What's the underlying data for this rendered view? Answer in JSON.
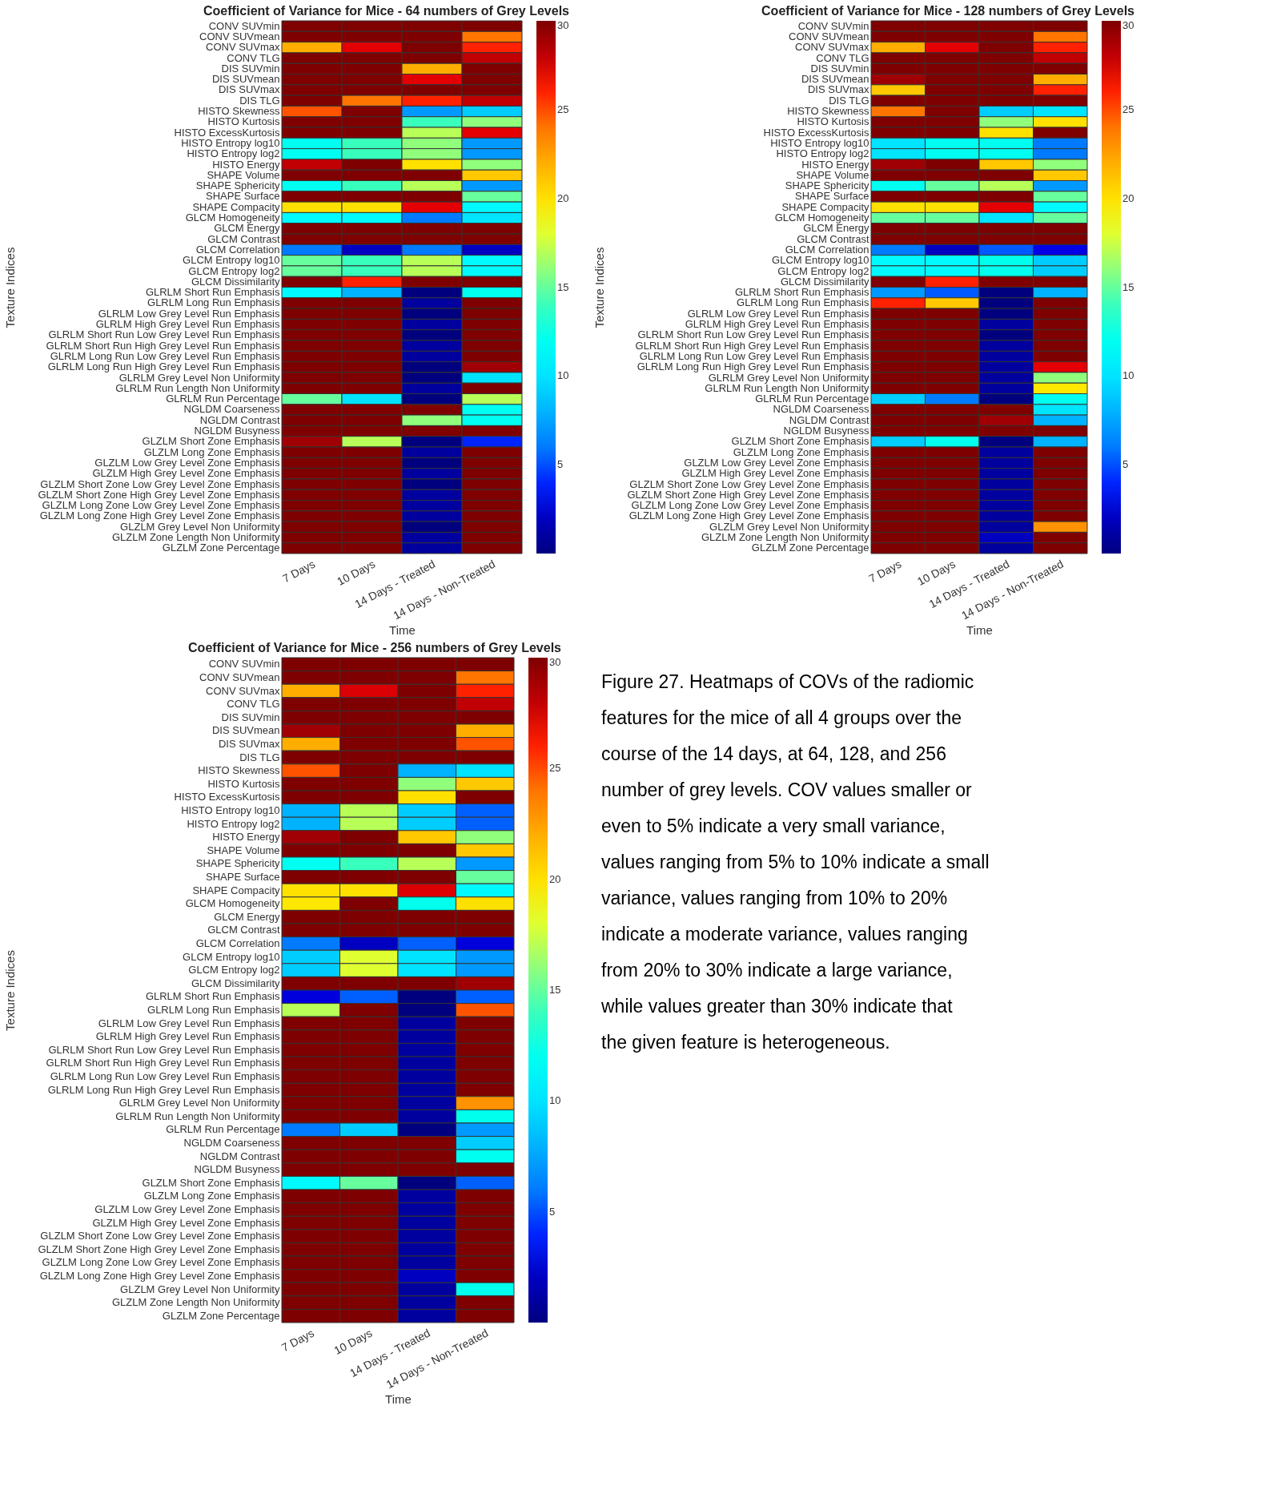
{
  "chart_data": [
    {
      "type": "heatmap",
      "title": "Coefficient of Variance for Mice - 64 numbers of Grey Levels",
      "xlabel": "Time",
      "ylabel": "Texture Indices",
      "categories": [
        "7 Days",
        "10 Days",
        "14 Days - Treated",
        "14 Days - Non-Treated"
      ],
      "y_categories": [
        "CONV SUVmin",
        "CONV SUVmean",
        "CONV SUVmax",
        "CONV TLG",
        "DIS SUVmin",
        "DIS SUVmean",
        "DIS SUVmax",
        "DIS TLG",
        "HISTO Skewness",
        "HISTO Kurtosis",
        "HISTO ExcessKurtosis",
        "HISTO Entropy log10",
        "HISTO Entropy log2",
        "HISTO Energy",
        "SHAPE Volume",
        "SHAPE Sphericity",
        "SHAPE Surface",
        "SHAPE Compacity",
        "GLCM Homogeneity",
        "GLCM Energy",
        "GLCM Contrast",
        "GLCM Correlation",
        "GLCM Entropy log10",
        "GLCM Entropy log2",
        "GLCM Dissimilarity",
        "GLRLM Short Run Emphasis",
        "GLRLM Long Run Emphasis",
        "GLRLM Low Grey Level Run Emphasis",
        "GLRLM High Grey Level Run Emphasis",
        "GLRLM Short Run Low Grey Level Run Emphasis",
        "GLRLM Short Run High Grey Level Run Emphasis",
        "GLRLM Long Run Low Grey Level Run Emphasis",
        "GLRLM Long Run High Grey Level Run Emphasis",
        "GLRLM Grey Level Non Uniformity",
        "GLRLM Run Length Non Uniformity",
        "GLRLM Run Percentage",
        "NGLDM Coarseness",
        "NGLDM Contrast",
        "NGLDM Busyness",
        "GLZLM Short Zone Emphasis",
        "GLZLM Long Zone Emphasis",
        "GLZLM Low Grey Level Zone Emphasis",
        "GLZLM High Grey Level Zone Emphasis",
        "GLZLM Short Zone Low Grey Level Zone Emphasis",
        "GLZLM Short Zone High Grey Level Zone Emphasis",
        "GLZLM Long Zone Low Grey Level Zone Emphasis",
        "GLZLM Long Zone High Grey Level Zone Emphasis",
        "GLZLM Grey Level Non Uniformity",
        "GLZLM Zone Length Non Uniformity",
        "GLZLM Zone Percentage"
      ],
      "cells": [
        [
          30,
          30,
          30,
          30
        ],
        [
          30,
          30,
          30,
          24
        ],
        [
          22,
          27,
          30,
          26
        ],
        [
          30,
          30,
          30,
          28
        ],
        [
          30,
          30,
          22,
          30
        ],
        [
          30,
          30,
          27,
          30
        ],
        [
          30,
          30,
          30,
          30
        ],
        [
          30,
          24,
          26,
          28
        ],
        [
          25,
          30,
          7,
          9
        ],
        [
          30,
          30,
          14,
          16
        ],
        [
          30,
          30,
          17,
          27
        ],
        [
          12,
          14,
          16,
          7
        ],
        [
          12,
          14,
          16,
          7
        ],
        [
          28,
          30,
          20,
          16
        ],
        [
          30,
          30,
          30,
          21
        ],
        [
          12,
          14,
          17,
          7
        ],
        [
          30,
          30,
          30,
          15
        ],
        [
          20,
          20,
          27,
          11
        ],
        [
          11,
          11,
          6,
          10
        ],
        [
          30,
          30,
          30,
          30
        ],
        [
          30,
          30,
          30,
          30
        ],
        [
          6,
          2,
          6,
          2
        ],
        [
          15,
          14,
          17,
          11
        ],
        [
          15,
          14,
          17,
          11
        ],
        [
          30,
          26,
          30,
          30
        ],
        [
          11,
          8,
          0,
          12
        ],
        [
          30,
          30,
          1,
          30
        ],
        [
          30,
          30,
          0,
          30
        ],
        [
          30,
          30,
          1,
          30
        ],
        [
          30,
          30,
          0,
          30
        ],
        [
          30,
          30,
          1,
          30
        ],
        [
          30,
          30,
          1,
          30
        ],
        [
          30,
          30,
          0,
          29
        ],
        [
          30,
          30,
          0,
          10
        ],
        [
          30,
          30,
          1,
          30
        ],
        [
          15,
          10,
          0,
          17
        ],
        [
          30,
          30,
          30,
          12
        ],
        [
          30,
          30,
          16,
          12
        ],
        [
          30,
          30,
          30,
          30
        ],
        [
          29,
          17,
          0,
          4
        ],
        [
          30,
          30,
          1,
          30
        ],
        [
          30,
          30,
          0,
          30
        ],
        [
          30,
          30,
          1,
          30
        ],
        [
          30,
          30,
          0,
          30
        ],
        [
          30,
          30,
          1,
          30
        ],
        [
          30,
          30,
          1,
          30
        ],
        [
          30,
          30,
          1,
          30
        ],
        [
          30,
          30,
          0,
          30
        ],
        [
          30,
          30,
          1,
          30
        ],
        [
          30,
          30,
          1,
          30
        ]
      ],
      "clim": [
        0,
        30
      ],
      "cticks": [
        5,
        10,
        15,
        20,
        25,
        30
      ]
    },
    {
      "type": "heatmap",
      "title": "Coefficient of Variance for Mice - 128 numbers of Grey Levels",
      "xlabel": "Time",
      "ylabel": "Texture Indices",
      "categories": [
        "7 Days",
        "10 Days",
        "14 Days - Treated",
        "14 Days - Non-Treated"
      ],
      "y_categories": [
        "CONV SUVmin",
        "CONV SUVmean",
        "CONV SUVmax",
        "CONV TLG",
        "DIS SUVmin",
        "DIS SUVmean",
        "DIS SUVmax",
        "DIS TLG",
        "HISTO Skewness",
        "HISTO Kurtosis",
        "HISTO ExcessKurtosis",
        "HISTO Entropy log10",
        "HISTO Entropy log2",
        "HISTO Energy",
        "SHAPE Volume",
        "SHAPE Sphericity",
        "SHAPE Surface",
        "SHAPE Compacity",
        "GLCM Homogeneity",
        "GLCM Energy",
        "GLCM Contrast",
        "GLCM Correlation",
        "GLCM Entropy log10",
        "GLCM Entropy log2",
        "GLCM Dissimilarity",
        "GLRLM Short Run Emphasis",
        "GLRLM Long Run Emphasis",
        "GLRLM Low Grey Level Run Emphasis",
        "GLRLM High Grey Level Run Emphasis",
        "GLRLM Short Run Low Grey Level Run Emphasis",
        "GLRLM Short Run High Grey Level Run Emphasis",
        "GLRLM Long Run Low Grey Level Run Emphasis",
        "GLRLM Long Run High Grey Level Run Emphasis",
        "GLRLM Grey Level Non Uniformity",
        "GLRLM Run Length Non Uniformity",
        "GLRLM Run Percentage",
        "NGLDM Coarseness",
        "NGLDM Contrast",
        "NGLDM Busyness",
        "GLZLM Short Zone Emphasis",
        "GLZLM Long Zone Emphasis",
        "GLZLM Low Grey Level Zone Emphasis",
        "GLZLM High Grey Level Zone Emphasis",
        "GLZLM Short Zone Low Grey Level Zone Emphasis",
        "GLZLM Short Zone High Grey Level Zone Emphasis",
        "GLZLM Long Zone Low Grey Level Zone Emphasis",
        "GLZLM Long Zone High Grey Level Zone Emphasis",
        "GLZLM Grey Level Non Uniformity",
        "GLZLM Zone Length Non Uniformity",
        "GLZLM Zone Percentage"
      ],
      "cells": [
        [
          30,
          30,
          30,
          30
        ],
        [
          30,
          30,
          30,
          24
        ],
        [
          22,
          27,
          30,
          26
        ],
        [
          30,
          30,
          30,
          28
        ],
        [
          30,
          30,
          30,
          30
        ],
        [
          29,
          30,
          30,
          22
        ],
        [
          21,
          30,
          30,
          26
        ],
        [
          30,
          30,
          30,
          30
        ],
        [
          24,
          30,
          9,
          10
        ],
        [
          30,
          30,
          16,
          20
        ],
        [
          30,
          30,
          20,
          30
        ],
        [
          10,
          12,
          12,
          6
        ],
        [
          10,
          12,
          12,
          6
        ],
        [
          29,
          30,
          21,
          16
        ],
        [
          30,
          30,
          30,
          21
        ],
        [
          12,
          15,
          17,
          7
        ],
        [
          30,
          30,
          30,
          15
        ],
        [
          20,
          20,
          27,
          11
        ],
        [
          15,
          15,
          10,
          15
        ],
        [
          30,
          30,
          30,
          30
        ],
        [
          30,
          30,
          30,
          30
        ],
        [
          6,
          2,
          5,
          3
        ],
        [
          11,
          11,
          12.2,
          9
        ],
        [
          11,
          11,
          12.2,
          9
        ],
        [
          30,
          26,
          30,
          30
        ],
        [
          7,
          5,
          0,
          8
        ],
        [
          26,
          21,
          0,
          30
        ],
        [
          30,
          30,
          0,
          30
        ],
        [
          30,
          30,
          1,
          30
        ],
        [
          30,
          30,
          0,
          30
        ],
        [
          30,
          30,
          1,
          30
        ],
        [
          30,
          30,
          1,
          30
        ],
        [
          30,
          30,
          1,
          27
        ],
        [
          30,
          30,
          1,
          16
        ],
        [
          30,
          30,
          1,
          19.7
        ],
        [
          9,
          6,
          0,
          12
        ],
        [
          30,
          30,
          30,
          10
        ],
        [
          30,
          30,
          29,
          8
        ],
        [
          30,
          30,
          30,
          30
        ],
        [
          9,
          12.2,
          0,
          8
        ],
        [
          30,
          30,
          1,
          30
        ],
        [
          30,
          30,
          1,
          30
        ],
        [
          30,
          30,
          1,
          30
        ],
        [
          30,
          30,
          1,
          30
        ],
        [
          30,
          30,
          1,
          30
        ],
        [
          30,
          30,
          1,
          30
        ],
        [
          30,
          30,
          1,
          30
        ],
        [
          30,
          30,
          1,
          23
        ],
        [
          30,
          30,
          2,
          30
        ],
        [
          30,
          30,
          1,
          30
        ]
      ],
      "clim": [
        0,
        30
      ],
      "cticks": [
        5,
        10,
        15,
        20,
        25,
        30
      ]
    },
    {
      "type": "heatmap",
      "title": "Coefficient of Variance for Mice - 256 numbers of Grey Levels",
      "xlabel": "Time",
      "ylabel": "Texture Indices",
      "categories": [
        "7 Days",
        "10 Days",
        "14 Days - Treated",
        "14 Days - Non-Treated"
      ],
      "y_categories": [
        "CONV SUVmin",
        "CONV SUVmean",
        "CONV SUVmax",
        "CONV TLG",
        "DIS SUVmin",
        "DIS SUVmean",
        "DIS SUVmax",
        "DIS TLG",
        "HISTO Skewness",
        "HISTO Kurtosis",
        "HISTO ExcessKurtosis",
        "HISTO Entropy log10",
        "HISTO Entropy log2",
        "HISTO Energy",
        "SHAPE Volume",
        "SHAPE Sphericity",
        "SHAPE Surface",
        "SHAPE Compacity",
        "GLCM Homogeneity",
        "GLCM Energy",
        "GLCM Contrast",
        "GLCM Correlation",
        "GLCM Entropy log10",
        "GLCM Entropy log2",
        "GLCM Dissimilarity",
        "GLRLM Short Run Emphasis",
        "GLRLM Long Run Emphasis",
        "GLRLM Low Grey Level Run Emphasis",
        "GLRLM High Grey Level Run Emphasis",
        "GLRLM Short Run Low Grey Level Run Emphasis",
        "GLRLM Short Run High Grey Level Run Emphasis",
        "GLRLM Long Run Low Grey Level Run Emphasis",
        "GLRLM Long Run High Grey Level Run Emphasis",
        "GLRLM Grey Level Non Uniformity",
        "GLRLM Run Length Non Uniformity",
        "GLRLM Run Percentage",
        "NGLDM Coarseness",
        "NGLDM Contrast",
        "NGLDM Busyness",
        "GLZLM Short Zone Emphasis",
        "GLZLM Long Zone Emphasis",
        "GLZLM Low Grey Level Zone Emphasis",
        "GLZLM High Grey Level Zone Emphasis",
        "GLZLM Short Zone Low Grey Level Zone Emphasis",
        "GLZLM Short Zone High Grey Level Zone Emphasis",
        "GLZLM Long Zone Low Grey Level Zone Emphasis",
        "GLZLM Long Zone High Grey Level Zone Emphasis",
        "GLZLM Grey Level Non Uniformity",
        "GLZLM Zone Length Non Uniformity",
        "GLZLM Zone Percentage"
      ],
      "cells": [
        [
          30,
          30,
          30,
          30
        ],
        [
          30,
          30,
          30,
          24
        ],
        [
          22,
          27.3,
          30,
          26
        ],
        [
          30,
          30,
          30,
          28
        ],
        [
          30,
          30,
          30,
          30
        ],
        [
          29,
          30,
          30,
          22
        ],
        [
          22,
          30,
          30,
          25
        ],
        [
          30,
          30,
          30,
          30
        ],
        [
          25,
          30,
          8,
          10
        ],
        [
          30,
          30,
          16,
          21
        ],
        [
          30,
          30,
          20,
          30
        ],
        [
          8,
          17,
          9,
          5.2
        ],
        [
          8,
          17,
          9,
          5.2
        ],
        [
          29,
          30,
          21,
          16
        ],
        [
          30,
          30,
          30,
          21
        ],
        [
          12,
          14,
          17,
          7
        ],
        [
          30,
          30,
          30,
          15
        ],
        [
          20,
          20,
          27.3,
          11
        ],
        [
          19.7,
          30,
          12.2,
          20
        ],
        [
          30,
          30,
          30,
          30
        ],
        [
          30,
          30,
          30,
          30
        ],
        [
          6,
          2,
          5.2,
          2.8
        ],
        [
          9,
          18,
          10,
          7
        ],
        [
          9,
          18,
          10,
          7
        ],
        [
          30,
          30,
          30,
          29
        ],
        [
          2.8,
          5.2,
          0,
          5.2
        ],
        [
          17,
          30,
          0,
          25
        ],
        [
          30,
          30,
          1,
          30
        ],
        [
          30,
          30,
          1,
          30
        ],
        [
          30,
          30,
          1,
          30
        ],
        [
          30,
          30,
          1,
          30
        ],
        [
          30,
          30,
          1,
          30
        ],
        [
          30,
          30,
          1,
          30
        ],
        [
          30,
          30,
          1,
          23
        ],
        [
          30,
          30,
          1,
          12.2
        ],
        [
          6,
          9,
          0,
          7
        ],
        [
          30,
          30,
          30,
          9
        ],
        [
          30,
          30,
          30,
          12
        ],
        [
          30,
          30,
          30,
          30
        ],
        [
          11,
          15,
          0,
          5.2
        ],
        [
          30,
          30,
          1,
          30
        ],
        [
          30,
          30,
          1,
          30
        ],
        [
          30,
          30,
          1,
          30
        ],
        [
          30,
          30,
          1,
          30
        ],
        [
          30,
          30,
          1,
          30
        ],
        [
          30,
          30,
          1,
          30
        ],
        [
          30,
          30,
          2,
          30
        ],
        [
          30,
          30,
          1,
          12.2
        ],
        [
          30,
          30,
          1,
          30
        ],
        [
          30,
          30,
          1,
          30
        ]
      ],
      "clim": [
        0,
        30
      ],
      "cticks": [
        5,
        10,
        15,
        20,
        25,
        30
      ],
      "annotations": [
        "Figure 27. Heatmaps of COVs of the radiomic features for the mice of all 4 groups over the course of the 14 days, at 64, 128, and 256 number of grey levels. COV values smaller or even to 5% indicate a very small variance, values ranging from 5% to 10% indicate a small variance, values ranging from 10% to 20% indicate a moderate variance, values ranging from 20% to 30% indicate a large variance, while values greater than 30% indicate that the given feature is heterogeneous."
      ]
    }
  ]
}
